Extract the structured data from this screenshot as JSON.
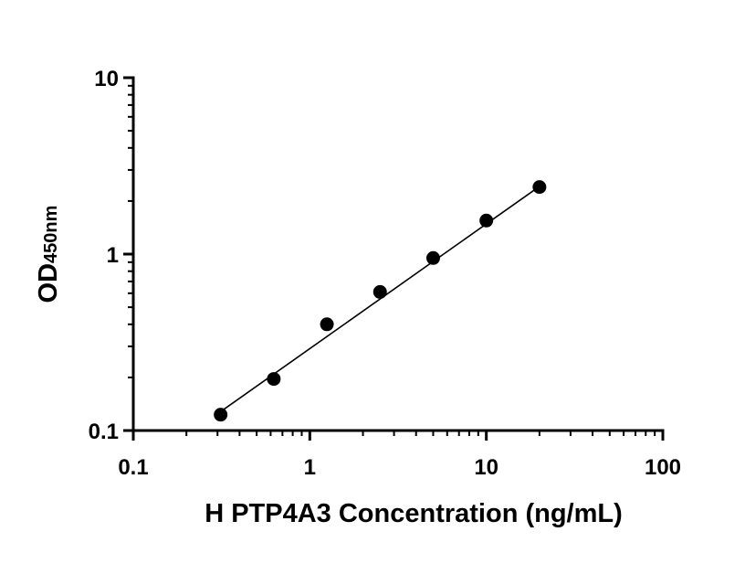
{
  "chart_data": {
    "type": "scatter",
    "x_scale": "log",
    "y_scale": "log",
    "xlim": [
      0.1,
      100
    ],
    "ylim": [
      0.1,
      10
    ],
    "x_ticks": [
      "0.1",
      "1",
      "10",
      "100"
    ],
    "y_ticks": [
      "0.1",
      "1",
      "10"
    ],
    "xlabel": "H PTP4A3 Concentration (ng/mL)",
    "ylabel_main": "OD",
    "ylabel_sub": "450nm",
    "grid": false,
    "legend": "none",
    "marker_color": "#000000",
    "points": [
      {
        "x": 0.3125,
        "y": 0.123
      },
      {
        "x": 0.625,
        "y": 0.196
      },
      {
        "x": 1.25,
        "y": 0.4
      },
      {
        "x": 2.5,
        "y": 0.61
      },
      {
        "x": 5,
        "y": 0.95
      },
      {
        "x": 10,
        "y": 1.55
      },
      {
        "x": 20,
        "y": 2.4
      }
    ],
    "fit_line": {
      "x": [
        0.3125,
        20
      ],
      "y": [
        0.128,
        2.42
      ]
    }
  }
}
